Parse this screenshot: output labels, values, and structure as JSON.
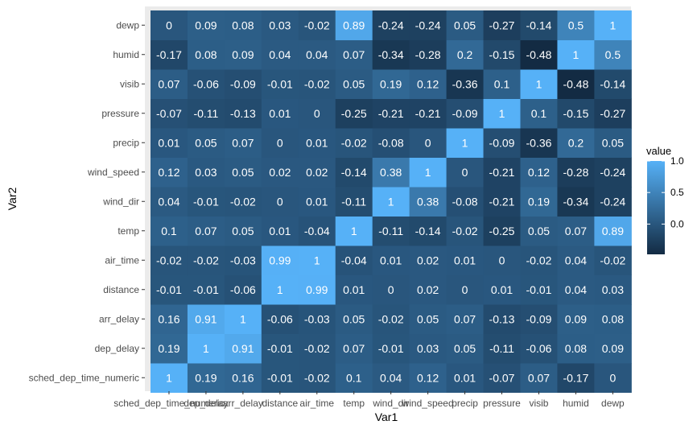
{
  "chart_data": {
    "type": "heatmap",
    "x": [
      "sched_dep_time_numeric",
      "dep_delay",
      "arr_delay",
      "distance",
      "air_time",
      "temp",
      "wind_dir",
      "wind_speed",
      "precip",
      "pressure",
      "visib",
      "humid",
      "dewp"
    ],
    "y": [
      "sched_dep_time_numeric",
      "dep_delay",
      "arr_delay",
      "distance",
      "air_time",
      "temp",
      "wind_dir",
      "wind_speed",
      "precip",
      "pressure",
      "visib",
      "humid",
      "dewp"
    ],
    "values": [
      [
        1,
        0.19,
        0.16,
        -0.01,
        -0.02,
        0.1,
        0.04,
        0.12,
        0.01,
        -0.07,
        0.07,
        -0.17,
        0
      ],
      [
        0.19,
        1,
        0.91,
        -0.01,
        -0.02,
        0.07,
        -0.01,
        0.03,
        0.05,
        -0.11,
        -0.06,
        0.08,
        0.09
      ],
      [
        0.16,
        0.91,
        1,
        -0.06,
        -0.03,
        0.05,
        -0.02,
        0.05,
        0.07,
        -0.13,
        -0.09,
        0.09,
        0.08
      ],
      [
        -0.01,
        -0.01,
        -0.06,
        1,
        0.99,
        0.01,
        0,
        0.02,
        0,
        0.01,
        -0.01,
        0.04,
        0.03
      ],
      [
        -0.02,
        -0.02,
        -0.03,
        0.99,
        1,
        -0.04,
        0.01,
        0.02,
        0.01,
        0,
        -0.02,
        0.04,
        -0.02
      ],
      [
        0.1,
        0.07,
        0.05,
        0.01,
        -0.04,
        1,
        -0.11,
        -0.14,
        -0.02,
        -0.25,
        0.05,
        0.07,
        0.89
      ],
      [
        0.04,
        -0.01,
        -0.02,
        0,
        0.01,
        -0.11,
        1,
        0.38,
        -0.08,
        -0.21,
        0.19,
        -0.34,
        -0.24
      ],
      [
        0.12,
        0.03,
        0.05,
        0.02,
        0.02,
        -0.14,
        0.38,
        1,
        0,
        -0.21,
        0.12,
        -0.28,
        -0.24
      ],
      [
        0.01,
        0.05,
        0.07,
        0,
        0.01,
        -0.02,
        -0.08,
        0,
        1,
        -0.09,
        -0.36,
        0.2,
        0.05
      ],
      [
        -0.07,
        -0.11,
        -0.13,
        0.01,
        0,
        -0.25,
        -0.21,
        -0.21,
        -0.09,
        1,
        0.1,
        -0.15,
        -0.27
      ],
      [
        0.07,
        -0.06,
        -0.09,
        -0.01,
        -0.02,
        0.05,
        0.19,
        0.12,
        -0.36,
        0.1,
        1,
        -0.48,
        -0.14
      ],
      [
        -0.17,
        0.08,
        0.09,
        0.04,
        0.04,
        0.07,
        -0.34,
        -0.28,
        0.2,
        -0.15,
        -0.48,
        1,
        0.5
      ],
      [
        0,
        0.09,
        0.08,
        0.03,
        -0.02,
        0.89,
        -0.24,
        -0.24,
        0.05,
        -0.27,
        -0.14,
        0.5,
        1
      ]
    ],
    "xlabel": "Var1",
    "ylabel": "Var2",
    "legend": {
      "title": "value",
      "ticks": [
        1.0,
        0.5,
        0.0
      ],
      "tick_labels": [
        "1.0",
        "0.5",
        "0.0"
      ],
      "range": [
        -0.48,
        1.0
      ],
      "placement": "right"
    },
    "colors": {
      "low": "#132B43",
      "high": "#56B1F7",
      "panel_background": "#ebebeb",
      "cell_text": "#ffffff"
    }
  }
}
